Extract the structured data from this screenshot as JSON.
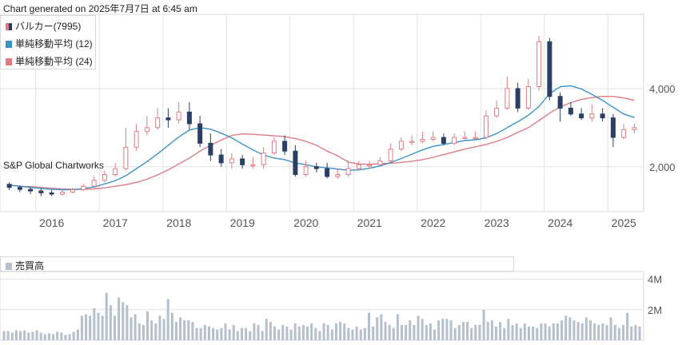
{
  "header": {
    "generated": "Chart generated on 2025年7月7日 at 6:45 am"
  },
  "legend": [
    {
      "label": "バルカー(7995)",
      "color": "#e07b84"
    },
    {
      "label": "単純移動平均 (12)",
      "color": "#3a93c8"
    },
    {
      "label": "単純移動平均 (24)",
      "color": "#e07b84"
    }
  ],
  "credit": "S&P Global Chartworks",
  "volume_legend": {
    "label": "売買高",
    "color": "#b4c0cc"
  },
  "colors": {
    "up": "#e07b84",
    "down": "#2c3e66",
    "sma12": "#3a93c8",
    "sma24": "#e07b84",
    "volume": "#b4c0cc",
    "grid": "#e2e2e2"
  },
  "chart_data": [
    {
      "type": "candlestick",
      "title": "バルカー(7995)",
      "x_ticks": [
        "2016",
        "2017",
        "2018",
        "2019",
        "2020",
        "2021",
        "2022",
        "2023",
        "2024",
        "2025"
      ],
      "y_ticks": [
        "2,000",
        "4,000"
      ],
      "ylim": [
        850,
        5900
      ],
      "grid": true,
      "legend_position": "top-left",
      "x": [
        "2015-08",
        "2015-10",
        "2015-12",
        "2016-02",
        "2016-04",
        "2016-06",
        "2016-08",
        "2016-10",
        "2016-12",
        "2017-02",
        "2017-04",
        "2017-06",
        "2017-08",
        "2017-10",
        "2017-12",
        "2018-02",
        "2018-04",
        "2018-06",
        "2018-08",
        "2018-10",
        "2018-12",
        "2019-02",
        "2019-04",
        "2019-06",
        "2019-08",
        "2019-10",
        "2019-12",
        "2020-02",
        "2020-04",
        "2020-06",
        "2020-08",
        "2020-10",
        "2020-12",
        "2021-02",
        "2021-04",
        "2021-06",
        "2021-08",
        "2021-10",
        "2021-12",
        "2022-02",
        "2022-04",
        "2022-06",
        "2022-08",
        "2022-10",
        "2022-12",
        "2023-02",
        "2023-04",
        "2023-06",
        "2023-08",
        "2023-10",
        "2023-12",
        "2024-02",
        "2024-04",
        "2024-06",
        "2024-08",
        "2024-10",
        "2024-12",
        "2025-02",
        "2025-04",
        "2025-06"
      ],
      "series": [
        {
          "name": "バルカー(7995)",
          "open": [
            1550,
            1470,
            1420,
            1380,
            1330,
            1300,
            1350,
            1410,
            1500,
            1650,
            1800,
            1950,
            2500,
            2900,
            3000,
            3250,
            3200,
            3400,
            3100,
            2600,
            2300,
            2100,
            2200,
            2050,
            2050,
            2350,
            2650,
            2400,
            1800,
            2000,
            1950,
            1750,
            1800,
            1950,
            2050,
            2050,
            2150,
            2450,
            2650,
            2650,
            2700,
            2750,
            2600,
            2750,
            2750,
            2750,
            3300,
            3500,
            4000,
            3500,
            4050,
            5200,
            3800,
            3500,
            3350,
            3250,
            3350,
            3250,
            2750,
            2950
          ],
          "close": [
            1470,
            1420,
            1380,
            1330,
            1300,
            1350,
            1410,
            1500,
            1650,
            1800,
            1950,
            2500,
            2900,
            3000,
            3250,
            3200,
            3400,
            3100,
            2600,
            2300,
            2100,
            2200,
            2050,
            2050,
            2350,
            2650,
            2400,
            1800,
            2000,
            1950,
            1750,
            1800,
            1950,
            2050,
            2050,
            2150,
            2450,
            2650,
            2650,
            2700,
            2750,
            2600,
            2750,
            2750,
            2750,
            3300,
            3500,
            4000,
            3500,
            4050,
            5200,
            3800,
            3500,
            3350,
            3250,
            3350,
            3250,
            2750,
            2950,
            3000
          ],
          "high": [
            1600,
            1520,
            1480,
            1440,
            1400,
            1420,
            1460,
            1560,
            1760,
            1900,
            2100,
            3000,
            3100,
            3300,
            3500,
            3500,
            3650,
            3650,
            3300,
            2850,
            2450,
            2350,
            2300,
            2250,
            2500,
            2750,
            2800,
            2550,
            2150,
            2100,
            2100,
            1950,
            2150,
            2150,
            2150,
            2250,
            2600,
            2750,
            2800,
            2900,
            2900,
            2850,
            2850,
            2900,
            2900,
            3450,
            3700,
            4300,
            4150,
            4250,
            5350,
            5300,
            3900,
            3650,
            3500,
            3600,
            3500,
            3350,
            3100,
            3100
          ],
          "low": [
            1400,
            1350,
            1300,
            1250,
            1250,
            1260,
            1320,
            1380,
            1450,
            1600,
            1750,
            1900,
            2400,
            2800,
            2950,
            3000,
            3100,
            2950,
            2500,
            2150,
            2000,
            1950,
            1950,
            1950,
            1950,
            2300,
            2300,
            1750,
            1750,
            1850,
            1700,
            1700,
            1750,
            1900,
            1950,
            2000,
            2100,
            2400,
            2550,
            2600,
            2650,
            2550,
            2550,
            2700,
            2700,
            2700,
            3250,
            3450,
            3400,
            3450,
            3950,
            3700,
            3150,
            3300,
            3200,
            3150,
            3150,
            2500,
            2700,
            2850
          ]
        },
        {
          "name": "単純移動平均 (12)",
          "values": [
            1530,
            1500,
            1470,
            1440,
            1420,
            1410,
            1410,
            1440,
            1480,
            1560,
            1640,
            1770,
            1950,
            2130,
            2330,
            2550,
            2760,
            2940,
            3000,
            2960,
            2860,
            2740,
            2580,
            2430,
            2300,
            2220,
            2180,
            2100,
            2050,
            2000,
            1970,
            1940,
            1910,
            1920,
            1960,
            2020,
            2110,
            2210,
            2320,
            2430,
            2520,
            2570,
            2620,
            2670,
            2690,
            2740,
            2850,
            3000,
            3150,
            3320,
            3540,
            3870,
            4050,
            4070,
            3990,
            3850,
            3700,
            3520,
            3350,
            3260
          ]
        },
        {
          "name": "単純移動平均 (24)",
          "values": [
            1520,
            1500,
            1490,
            1470,
            1450,
            1430,
            1420,
            1420,
            1430,
            1460,
            1500,
            1540,
            1600,
            1680,
            1790,
            1920,
            2070,
            2220,
            2400,
            2550,
            2680,
            2800,
            2840,
            2830,
            2810,
            2790,
            2770,
            2720,
            2650,
            2550,
            2400,
            2280,
            2120,
            2070,
            2060,
            2080,
            2090,
            2110,
            2140,
            2180,
            2240,
            2310,
            2380,
            2450,
            2510,
            2570,
            2650,
            2750,
            2880,
            3000,
            3180,
            3370,
            3530,
            3640,
            3720,
            3770,
            3800,
            3800,
            3760,
            3700
          ]
        }
      ]
    },
    {
      "type": "bar",
      "title": "売買高",
      "y_ticks": [
        "2M",
        "4M"
      ],
      "ylim": [
        0,
        4500000
      ],
      "values": [
        600000,
        600000,
        500000,
        650000,
        600000,
        650000,
        500000,
        550000,
        650000,
        500000,
        400000,
        450000,
        400000,
        550000,
        500000,
        350000,
        400000,
        550000,
        700000,
        1600000,
        1700000,
        1600000,
        2100000,
        1800000,
        1600000,
        3100000,
        2300000,
        1600000,
        2800000,
        2500000,
        2300000,
        1500000,
        1700000,
        1100000,
        1000000,
        1900000,
        1300000,
        1100000,
        1600000,
        1400000,
        2700000,
        1800000,
        1200000,
        1500000,
        1300000,
        1300000,
        1200000,
        800000,
        800000,
        1000000,
        900000,
        800000,
        700000,
        800000,
        1100000,
        700000,
        1000000,
        600000,
        800000,
        800000,
        600000,
        1100000,
        1000000,
        600000,
        1400000,
        1200000,
        900000,
        700000,
        1000000,
        900000,
        700000,
        1100000,
        900000,
        1000000,
        900000,
        1100000,
        800000,
        600000,
        1100000,
        1000000,
        700000,
        1100000,
        1200000,
        1100000,
        800000,
        700000,
        900000,
        700000,
        800000,
        1800000,
        900000,
        1500000,
        1700000,
        1200000,
        1000000,
        800000,
        1700000,
        1000000,
        1000000,
        1300000,
        1000000,
        1600000,
        1400000,
        1000000,
        1100000,
        700000,
        1300000,
        1400000,
        1400000,
        1300000,
        800000,
        1000000,
        1200000,
        1200000,
        800000,
        1000000,
        1000000,
        2000000,
        1200000,
        1300000,
        900000,
        1200000,
        800000,
        1400000,
        1000000,
        1100000,
        800000,
        1100000,
        900000,
        900000,
        800000,
        1100000,
        1100000,
        900000,
        1100000,
        1100000,
        1300000,
        1600000,
        1500000,
        1300000,
        1200000,
        1100000,
        1500000,
        1300000,
        1100000,
        1000000,
        1100000,
        1000000,
        1500000,
        1000000,
        800000,
        1000000,
        1800000,
        900000,
        1000000,
        900000
      ]
    }
  ]
}
